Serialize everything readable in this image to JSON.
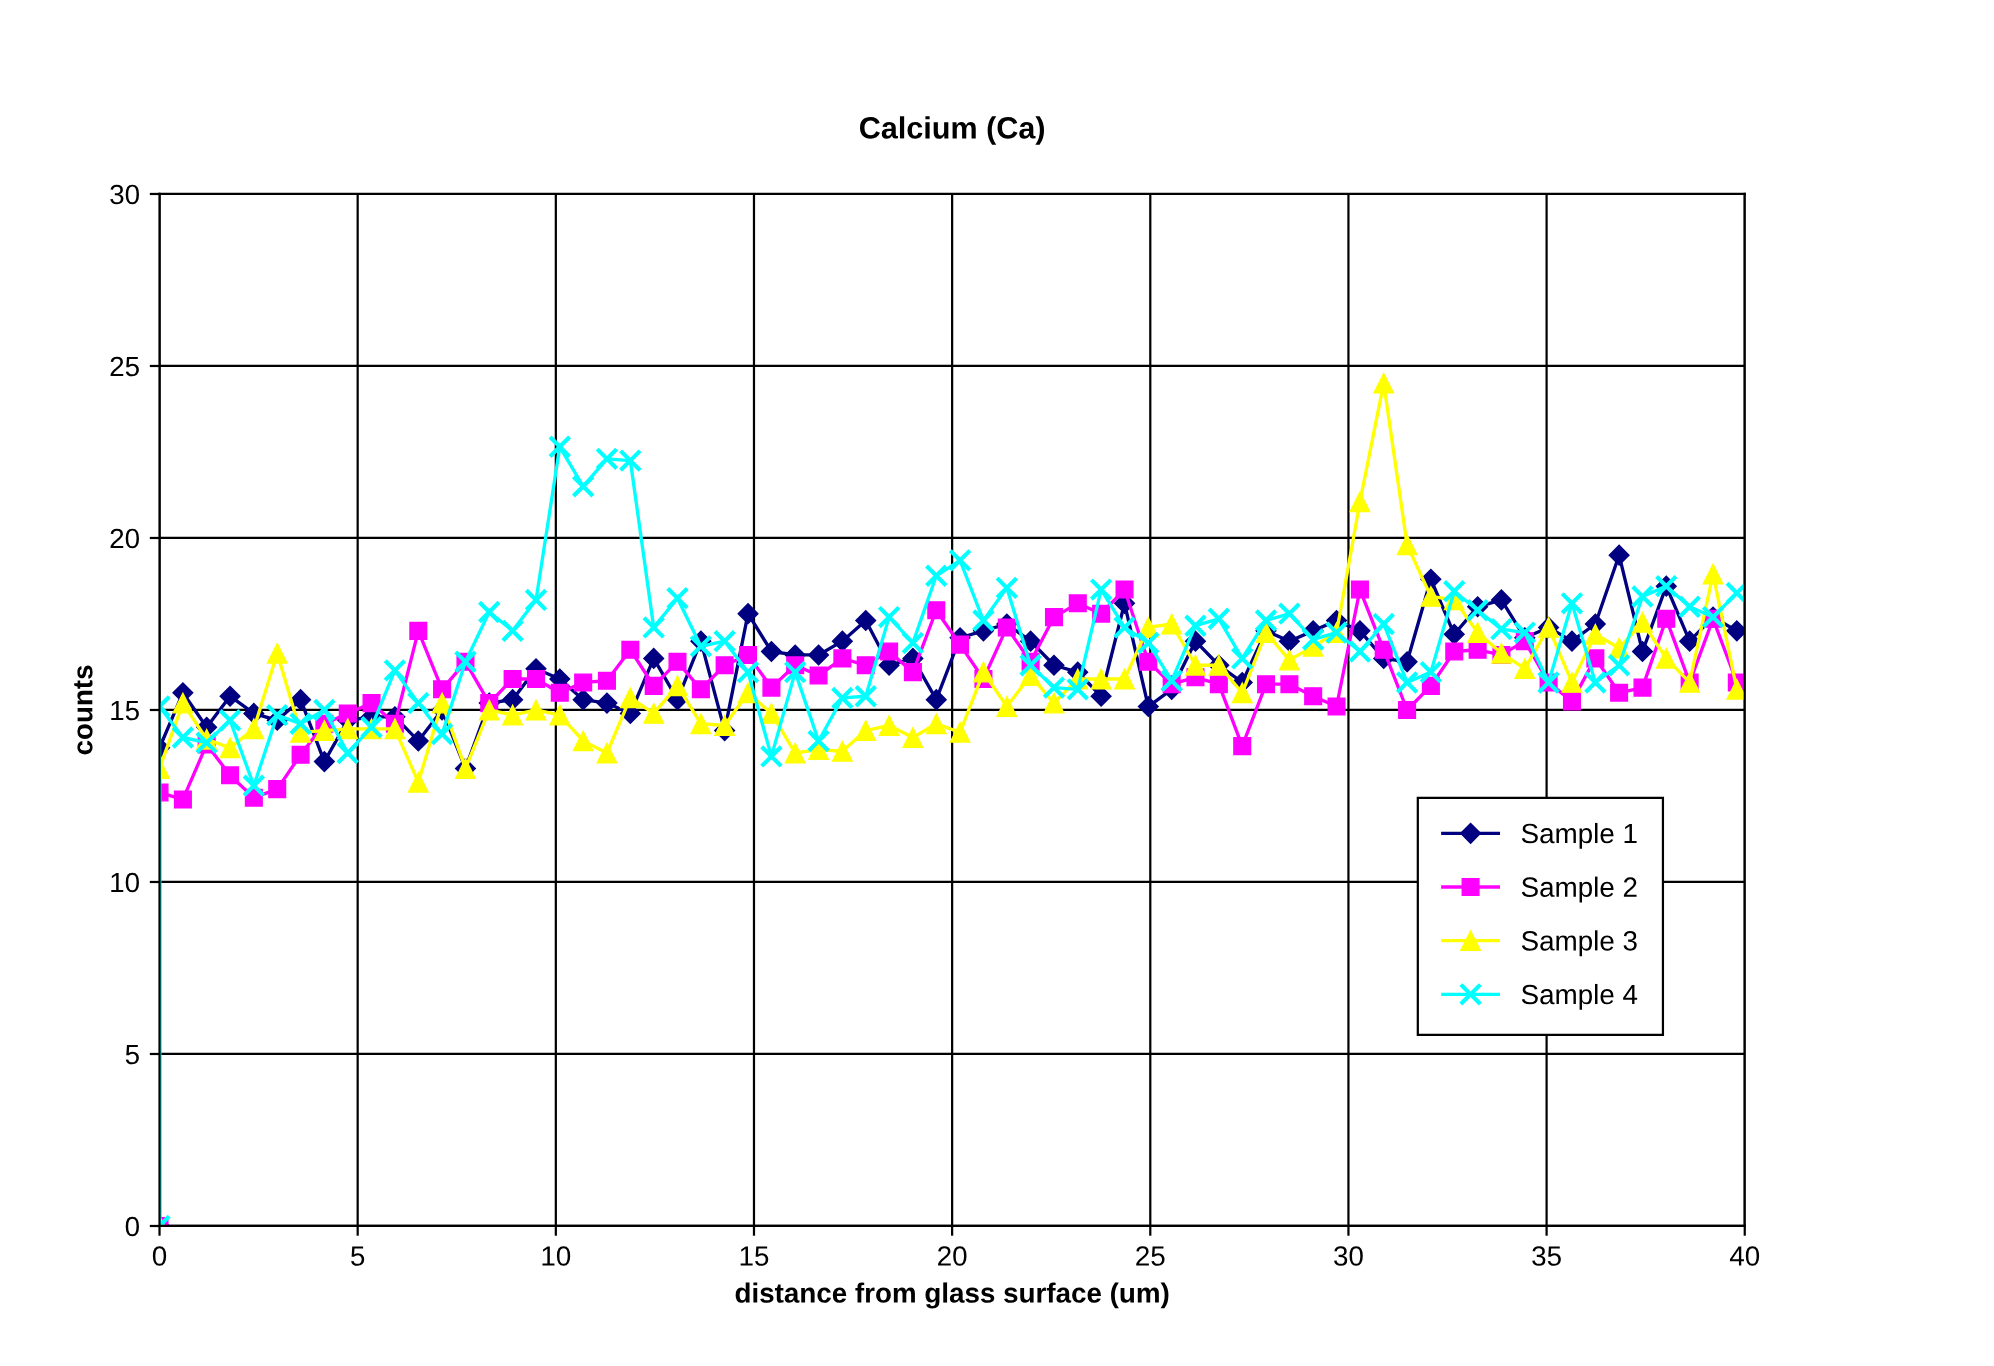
{
  "chart_data": {
    "type": "line",
    "title": "Calcium (Ca)",
    "xlabel": "distance from glass surface (um)",
    "ylabel": "counts",
    "x": [
      0,
      0,
      0.59,
      1.19,
      1.78,
      2.38,
      2.97,
      3.56,
      4.16,
      4.75,
      5.35,
      5.94,
      6.53,
      7.13,
      7.72,
      8.32,
      8.91,
      9.5,
      10.1,
      10.69,
      11.29,
      11.88,
      12.47,
      13.07,
      13.66,
      14.26,
      14.85,
      15.44,
      16.04,
      16.63,
      17.23,
      17.82,
      18.41,
      19.01,
      19.6,
      20.2,
      20.79,
      21.38,
      21.98,
      22.57,
      23.17,
      23.76,
      24.35,
      24.95,
      25.54,
      26.14,
      26.73,
      27.32,
      27.92,
      28.51,
      29.11,
      29.7,
      30.29,
      30.89,
      31.48,
      32.08,
      32.67,
      33.26,
      33.86,
      34.45,
      35.05,
      35.64,
      36.23,
      36.83,
      37.42,
      38.02,
      38.61,
      39.2,
      39.8
    ],
    "series": [
      {
        "name": "Sample 1",
        "color": "#000080",
        "marker": "diamond",
        "values": [
          0,
          13.9,
          15.5,
          14.5,
          15.4,
          14.9,
          14.7,
          15.3,
          13.5,
          14.7,
          14.8,
          14.8,
          14.1,
          15.0,
          13.3,
          15.2,
          15.3,
          16.2,
          15.9,
          15.3,
          15.2,
          14.9,
          16.5,
          15.3,
          17.0,
          14.4,
          17.8,
          16.7,
          16.6,
          16.6,
          17.0,
          17.6,
          16.3,
          16.5,
          15.3,
          17.1,
          17.3,
          17.5,
          17.0,
          16.3,
          16.1,
          15.4,
          18.1,
          15.1,
          15.6,
          17.0,
          16.3,
          15.8,
          17.3,
          17.0,
          17.3,
          17.6,
          17.3,
          16.5,
          16.4,
          18.8,
          17.2,
          18.0,
          18.2,
          17.1,
          17.4,
          17.0,
          17.5,
          19.5,
          16.7,
          18.6,
          17.0,
          17.7,
          17.3
        ]
      },
      {
        "name": "Sample 2",
        "color": "#ff00ff",
        "marker": "square",
        "values": [
          0,
          12.6,
          12.4,
          14.0,
          13.1,
          12.45,
          12.7,
          13.7,
          14.6,
          14.9,
          15.2,
          14.6,
          17.3,
          15.6,
          16.4,
          15.2,
          15.9,
          15.9,
          15.5,
          15.8,
          15.85,
          16.75,
          15.7,
          16.4,
          15.6,
          16.3,
          16.6,
          15.65,
          16.3,
          16.0,
          16.5,
          16.3,
          16.7,
          16.1,
          17.9,
          16.9,
          15.9,
          17.4,
          16.4,
          17.7,
          18.1,
          17.8,
          18.5,
          16.4,
          15.75,
          15.95,
          15.75,
          13.95,
          15.75,
          15.75,
          15.4,
          15.1,
          18.5,
          16.75,
          15.0,
          15.7,
          16.7,
          16.75,
          16.6,
          17.0,
          15.8,
          15.25,
          16.5,
          15.5,
          15.65,
          17.65,
          15.8,
          17.65,
          15.8
        ]
      },
      {
        "name": "Sample 3",
        "color": "#ffff00",
        "marker": "triangle",
        "values": [
          0,
          13.3,
          15.2,
          14.15,
          13.9,
          14.45,
          16.65,
          14.35,
          14.4,
          14.45,
          14.45,
          14.45,
          12.9,
          15.2,
          13.3,
          15.0,
          14.85,
          15.0,
          14.85,
          14.1,
          13.75,
          15.35,
          14.9,
          15.7,
          14.6,
          14.55,
          15.5,
          14.9,
          13.75,
          13.85,
          13.8,
          14.4,
          14.55,
          14.2,
          14.6,
          14.35,
          16.1,
          15.1,
          16.0,
          15.2,
          15.9,
          15.9,
          15.9,
          17.4,
          17.5,
          16.3,
          16.3,
          15.5,
          17.25,
          16.45,
          16.85,
          17.25,
          21.05,
          24.5,
          19.8,
          18.3,
          18.2,
          17.25,
          16.65,
          16.2,
          17.4,
          15.8,
          17.2,
          16.8,
          17.55,
          16.5,
          15.8,
          18.95,
          15.6
        ]
      },
      {
        "name": "Sample 4",
        "color": "#00ffff",
        "marker": "cross",
        "values": [
          0,
          15.1,
          14.2,
          14.05,
          14.7,
          12.8,
          14.85,
          14.6,
          15.0,
          13.75,
          14.5,
          16.15,
          15.2,
          14.3,
          16.4,
          17.85,
          17.3,
          18.2,
          22.65,
          21.5,
          22.3,
          22.25,
          17.4,
          18.25,
          16.85,
          17.0,
          16.1,
          13.65,
          16.1,
          14.1,
          15.35,
          15.4,
          17.7,
          16.95,
          18.9,
          19.35,
          17.6,
          18.55,
          16.3,
          15.65,
          15.6,
          18.5,
          17.4,
          16.95,
          15.85,
          17.45,
          17.65,
          16.5,
          17.6,
          17.8,
          17.05,
          17.25,
          16.7,
          17.5,
          15.8,
          16.1,
          18.45,
          17.9,
          17.35,
          17.25,
          15.8,
          18.1,
          15.8,
          16.3,
          18.3,
          18.6,
          18.0,
          17.7,
          18.4
        ]
      }
    ],
    "xlim": [
      0,
      40
    ],
    "xticks": [
      0,
      5,
      10,
      15,
      20,
      25,
      30,
      35,
      40
    ],
    "ylim": [
      0,
      30
    ],
    "yticks": [
      0,
      5,
      10,
      15,
      20,
      25,
      30
    ],
    "grid": true,
    "legend": "right",
    "line_style": "solid"
  }
}
